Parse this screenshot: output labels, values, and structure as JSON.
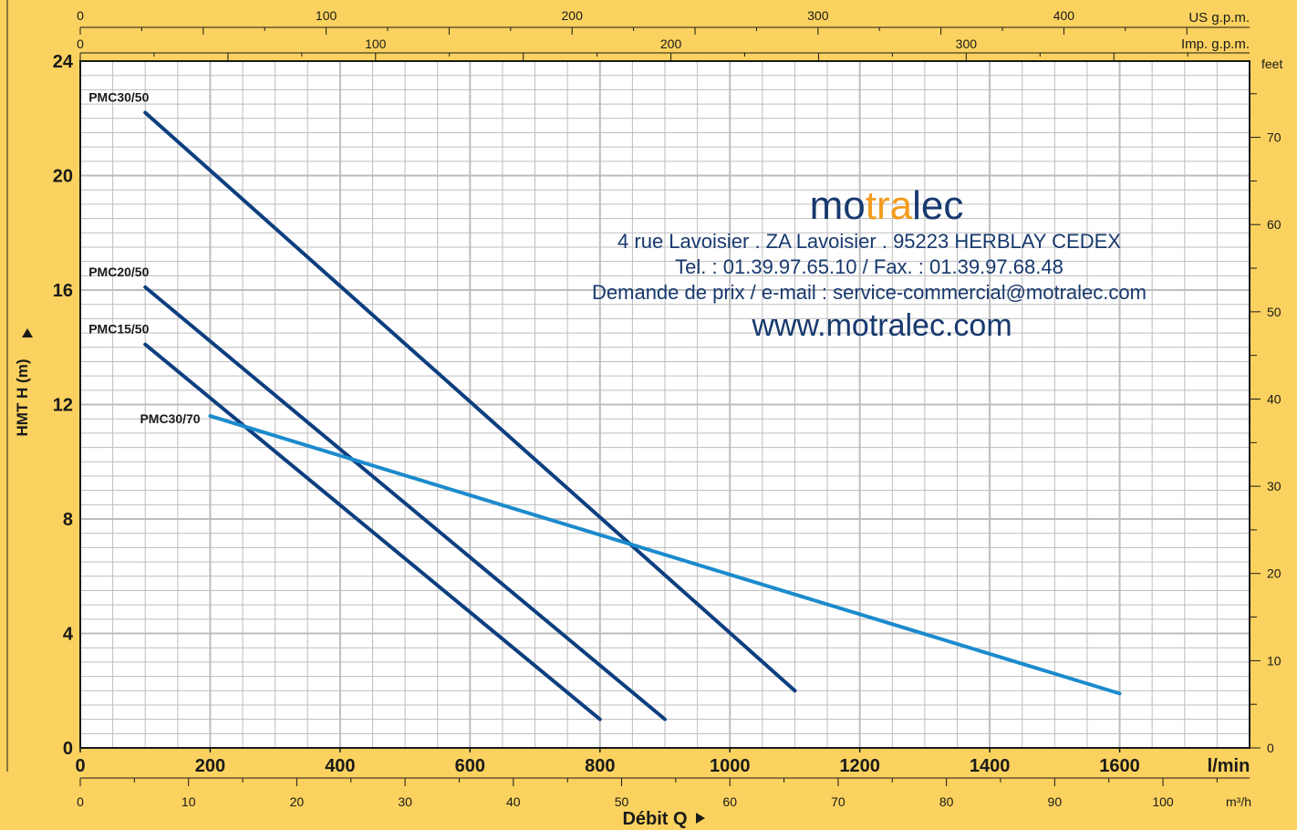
{
  "chart_data": {
    "type": "line",
    "x_unit": "l/min",
    "y_unit": "m",
    "xlim": [
      0,
      1800
    ],
    "ylim": [
      0,
      24
    ],
    "x_ticks": [
      0,
      200,
      400,
      600,
      800,
      1000,
      1200,
      1400,
      1600
    ],
    "x_tick_labels": [
      "0",
      "200",
      "400",
      "600",
      "800",
      "1000",
      "1200",
      "1400",
      "1600"
    ],
    "y_ticks": [
      0,
      4,
      8,
      12,
      16,
      20,
      24
    ],
    "y_tick_labels": [
      "0",
      "4",
      "8",
      "12",
      "16",
      "20",
      "24"
    ],
    "grid": true,
    "xlabel": "Débit Q",
    "ylabel": "HMT H (m)",
    "x_unit_label": "l/min",
    "secondary_axes": {
      "us_gpm": {
        "label": "US g.p.m.",
        "ticks": [
          0,
          100,
          200,
          300,
          400
        ],
        "tick_labels": [
          "0",
          "100",
          "200",
          "300",
          "400"
        ]
      },
      "imp_gpm": {
        "label": "Imp. g.p.m.",
        "ticks": [
          0,
          100,
          200,
          300
        ],
        "tick_labels": [
          "0",
          "100",
          "200",
          "300"
        ]
      },
      "m3h": {
        "label": "m³/h",
        "ticks": [
          0,
          10,
          20,
          30,
          40,
          50,
          60,
          70,
          80,
          90,
          100
        ],
        "tick_labels": [
          "0",
          "10",
          "20",
          "30",
          "40",
          "50",
          "60",
          "70",
          "80",
          "90",
          "100"
        ]
      },
      "feet": {
        "label": "feet",
        "ticks": [
          0,
          10,
          20,
          30,
          40,
          50,
          60,
          70
        ],
        "tick_labels": [
          "0",
          "10",
          "20",
          "30",
          "40",
          "50",
          "60",
          "70"
        ]
      }
    },
    "series": [
      {
        "name": "PMC30/50",
        "color": "#0d3f7f",
        "points": [
          [
            100,
            22.2
          ],
          [
            1100,
            2.0
          ]
        ]
      },
      {
        "name": "PMC20/50",
        "color": "#0d3f7f",
        "points": [
          [
            100,
            16.1
          ],
          [
            900,
            1.0
          ]
        ]
      },
      {
        "name": "PMC15/50",
        "color": "#0d3f7f",
        "points": [
          [
            100,
            14.1
          ],
          [
            800,
            1.0
          ]
        ]
      },
      {
        "name": "PMC30/70",
        "color": "#1b8bcc",
        "points": [
          [
            200,
            11.6
          ],
          [
            1600,
            1.9
          ]
        ]
      }
    ]
  },
  "brand": {
    "name_part1": "mo",
    "name_part2": "tra",
    "name_part3": "lec",
    "address": "4 rue Lavoisier . ZA Lavoisier . 95223 HERBLAY CEDEX",
    "phone": "Tel. : 01.39.97.65.10 / Fax. : 01.39.97.68.48",
    "email": "Demande de prix / e-mail : service-commercial@motralec.com",
    "website": "www.motralec.com",
    "color_dark": "#17396e",
    "color_accent": "#f39a1c"
  },
  "colors": {
    "background": "#fbd25f",
    "plot_background": "#ffffff",
    "grid": "#bdbdbd",
    "axis": "#1a1a1a"
  }
}
